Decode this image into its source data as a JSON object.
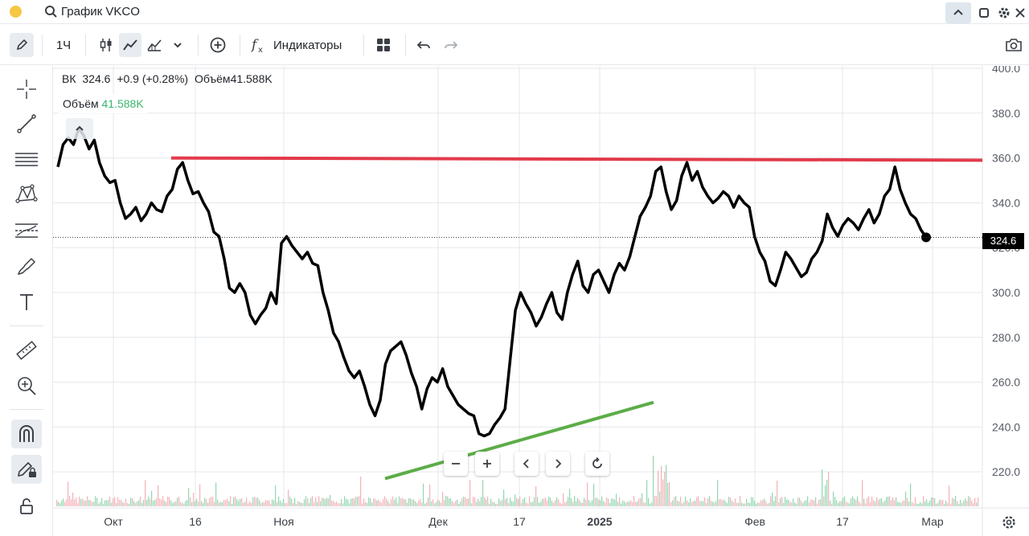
{
  "window": {
    "title": "График VKCO"
  },
  "toolbar": {
    "interval": "1Ч",
    "indicators_label": "Индикаторы"
  },
  "legend": {
    "ticker": "ВК",
    "price": "324.6",
    "change": "+0.9 (+0.28%)",
    "volume_label": "Объём",
    "volume_value": "41.588K"
  },
  "volume_legend": {
    "label": "Объём",
    "value": "41.588K"
  },
  "price_tag": "324.6",
  "colors": {
    "price_line": "#000000",
    "resistance_line": "#e23a4a",
    "support_line": "#5cad48",
    "volume_up": "#7fd0a2",
    "volume_down": "#f2a3ab"
  },
  "chart_data": {
    "type": "line",
    "title": "",
    "xlabel": "",
    "ylabel": "",
    "ylim": [
      205,
      400
    ],
    "y_ticks": [
      "400.0",
      "380.0",
      "360.0",
      "340.0",
      "320.0",
      "300.0",
      "280.0",
      "260.0",
      "240.0",
      "220.0"
    ],
    "x_ticks": [
      "Окт",
      "16",
      "Ноя",
      "Дек",
      "17",
      "2025",
      "Фев",
      "17",
      "Мар"
    ],
    "series": [
      {
        "values": [
          356,
          366,
          369,
          366,
          373,
          370,
          364,
          368,
          358,
          352,
          349,
          350,
          340,
          333,
          335,
          338,
          332,
          335,
          340,
          337,
          336,
          343,
          346,
          355,
          358,
          350,
          344,
          345,
          340,
          336,
          327,
          325,
          315,
          302,
          300,
          304,
          300,
          290,
          286,
          290,
          293,
          300,
          295,
          322,
          325,
          321,
          318,
          315,
          318,
          313,
          312,
          300,
          292,
          282,
          278,
          271,
          265,
          262,
          265,
          258,
          250,
          245,
          252,
          268,
          274,
          276,
          278,
          272,
          264,
          258,
          248,
          257,
          262,
          260,
          266,
          258,
          254,
          250,
          248,
          246,
          245,
          237,
          236,
          237,
          241,
          244,
          248,
          270,
          292,
          300,
          295,
          291,
          285,
          289,
          295,
          300,
          291,
          288,
          300,
          308,
          314,
          303,
          300,
          308,
          310,
          305,
          300,
          308,
          313,
          310,
          316,
          325,
          334,
          338,
          343,
          354,
          356,
          345,
          337,
          341,
          352,
          358,
          350,
          354,
          347,
          343,
          340,
          342,
          345,
          343,
          338,
          343,
          340,
          338,
          325,
          318,
          314,
          305,
          303,
          310,
          318,
          315,
          311,
          307,
          309,
          315,
          318,
          323,
          335,
          329,
          325,
          330,
          333,
          331,
          328,
          333,
          337,
          331,
          335,
          343,
          346,
          356,
          346,
          340,
          335,
          333,
          328,
          324.6
        ]
      }
    ],
    "x_range": [
      "2024-09-23",
      "2025-03-01"
    ],
    "resistance": {
      "from": [
        "2024-10-11",
        360
      ],
      "to": [
        "2025-03-03",
        359
      ]
    },
    "support": {
      "from": [
        "2024-11-25",
        217
      ],
      "to": [
        "2025-01-14",
        251
      ]
    },
    "grid": true,
    "volume": true
  }
}
